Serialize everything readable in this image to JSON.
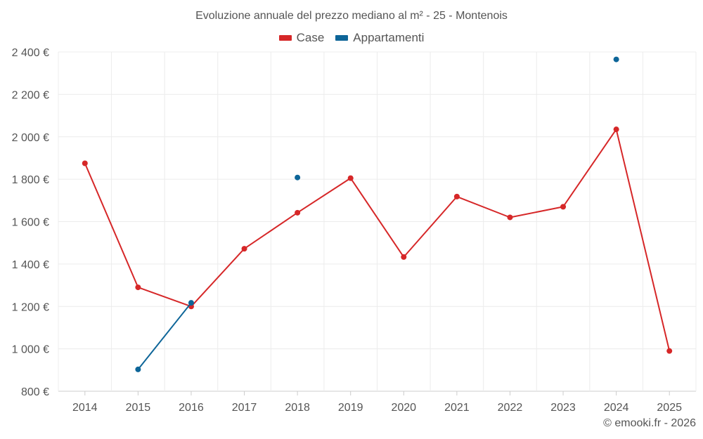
{
  "chart_data": {
    "type": "line",
    "title": "Evoluzione annuale del prezzo mediano al m² - 25 - Montenois",
    "categories": [
      "2014",
      "2015",
      "2016",
      "2017",
      "2018",
      "2019",
      "2020",
      "2021",
      "2022",
      "2023",
      "2024",
      "2025"
    ],
    "y_ticks": [
      "800 €",
      "1 000 €",
      "1 200 €",
      "1 400 €",
      "1 600 €",
      "1 800 €",
      "2 000 €",
      "2 200 €",
      "2 400 €"
    ],
    "ylim": [
      800,
      2400
    ],
    "grid": true,
    "legend": "top-center",
    "series": [
      {
        "name": "Case",
        "color": "#d62728",
        "values": [
          1875,
          1290,
          1200,
          1472,
          1642,
          1805,
          1433,
          1718,
          1620,
          1670,
          2035,
          990
        ]
      },
      {
        "name": "Appartamenti",
        "color": "#0d6598",
        "values": [
          null,
          903,
          1217,
          null,
          1808,
          null,
          null,
          null,
          null,
          null,
          2365,
          null
        ]
      }
    ]
  },
  "credit": "© emooki.fr - 2026"
}
